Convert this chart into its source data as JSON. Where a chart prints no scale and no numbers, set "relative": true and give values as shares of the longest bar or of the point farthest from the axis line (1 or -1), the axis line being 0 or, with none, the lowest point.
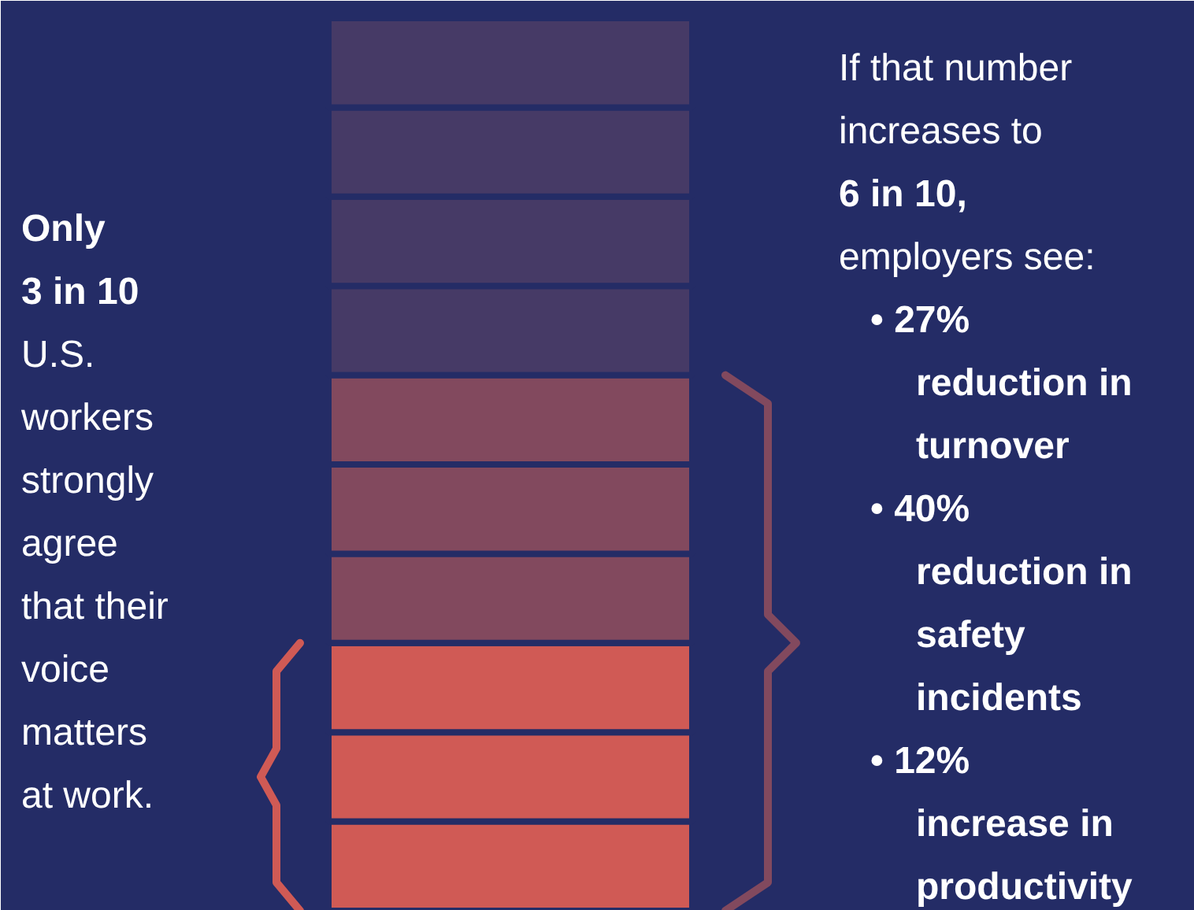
{
  "chart_data": {
    "type": "bar",
    "stacked": true,
    "relative": true,
    "categories": [
      null
    ],
    "series": [
      {
        "color": "#d05a55",
        "values": [
          0.1
        ]
      },
      {
        "color": "#d05a55",
        "values": [
          0.1
        ]
      },
      {
        "color": "#d05a55",
        "values": [
          0.1
        ]
      },
      {
        "color": "#82495e",
        "values": [
          0.1
        ]
      },
      {
        "color": "#82495e",
        "values": [
          0.1
        ]
      },
      {
        "color": "#82495e",
        "values": [
          0.1
        ]
      },
      {
        "color": "#463a66",
        "values": [
          0.1
        ]
      },
      {
        "color": "#463a66",
        "values": [
          0.1
        ]
      },
      {
        "color": "#463a66",
        "values": [
          0.1
        ]
      },
      {
        "color": "#463a66",
        "values": [
          0.1
        ]
      }
    ],
    "annotations": [
      "Only",
      "3 in 10",
      "U.S.",
      "workers",
      "strongly",
      "agree",
      "that their",
      "voice",
      "matters",
      "at work.",
      "If that number",
      "increases to",
      "6 in 10,",
      "employers see:",
      "• 27%",
      "reduction in",
      "turnover",
      "• 40%",
      "reduction in",
      "safety",
      "incidents",
      "• 12%",
      "increase in",
      "productivity"
    ]
  }
}
